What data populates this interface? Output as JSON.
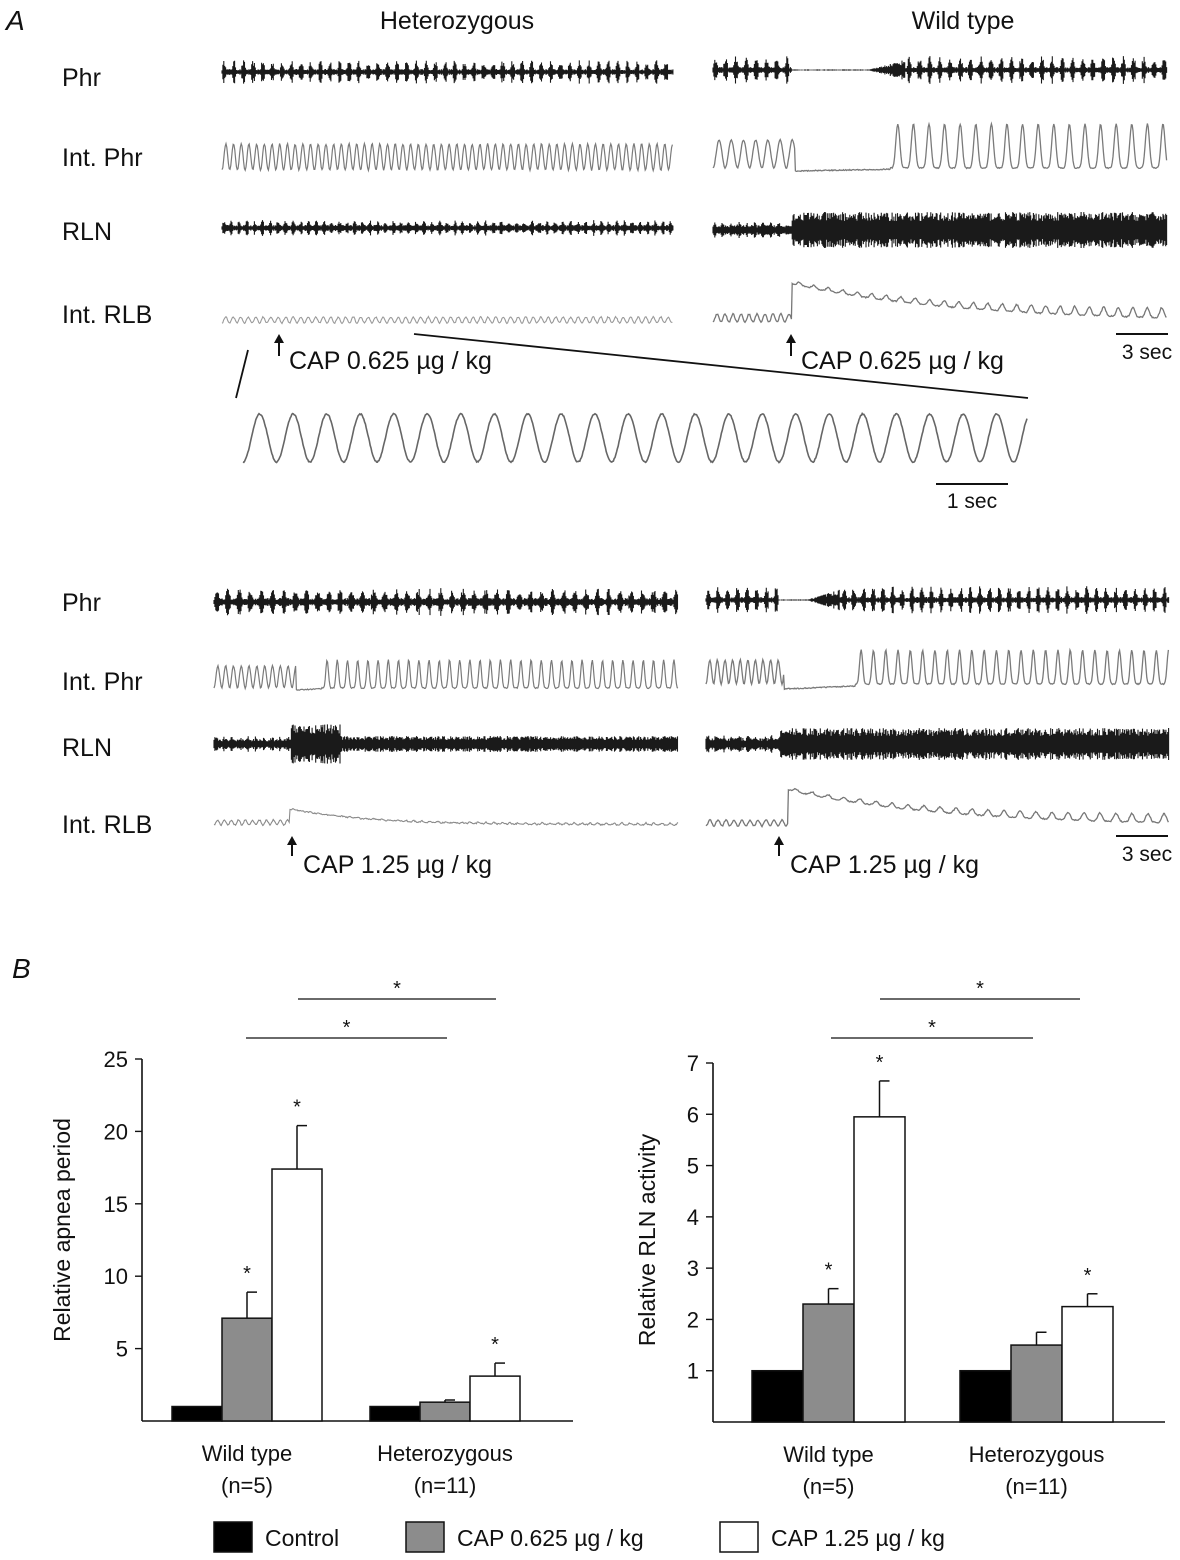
{
  "panel_a": {
    "letter": "A",
    "col_heads": [
      "Heterozygous",
      "Wild type"
    ],
    "trace_labels": [
      "Phr",
      "Int. Phr",
      "RLN",
      "Int. RLB"
    ],
    "top_stim": [
      "CAP 0.625 µg / kg",
      "CAP 0.625 µg / kg"
    ],
    "bottom_stim": [
      "CAP 1.25 µg / kg",
      "CAP 1.25 µg / kg"
    ],
    "scale_top": "3 sec",
    "scale_zoom": "1 sec",
    "scale_bottom": "3 sec"
  },
  "panel_b": {
    "letter": "B",
    "sig_marker": "*"
  },
  "colors": {
    "control": "#000000",
    "cap_low": "#8c8c8c",
    "cap_high": "#ffffff",
    "trace": "#1a1a1a",
    "integrated": "#777777"
  },
  "chart_data": [
    {
      "type": "bar",
      "title": "",
      "xlabel": "",
      "ylabel": "Relative apnea period",
      "categories": [
        "Wild type",
        "Heterozygous"
      ],
      "category_n": [
        "(n=5)",
        "(n=11)"
      ],
      "yticks": [
        5,
        10,
        15,
        20,
        25
      ],
      "ylim": [
        0,
        25
      ],
      "series": [
        {
          "name": "Control",
          "values": [
            1,
            1
          ],
          "errors": [
            0,
            0
          ],
          "sig": [
            false,
            false
          ]
        },
        {
          "name": "CAP 0.625 µg / kg",
          "values": [
            7.1,
            1.3
          ],
          "errors": [
            1.8,
            0.15
          ],
          "sig": [
            true,
            false
          ]
        },
        {
          "name": "CAP 1.25 µg / kg",
          "values": [
            17.4,
            3.1
          ],
          "errors": [
            3.0,
            0.9
          ],
          "sig": [
            true,
            true
          ]
        }
      ],
      "comparisons": [
        {
          "from_category": 0,
          "from_series": 1,
          "to_category": 1,
          "to_series": 1,
          "label": "*"
        },
        {
          "from_category": 0,
          "from_series": 2,
          "to_category": 1,
          "to_series": 2,
          "label": "*"
        }
      ],
      "legend": "bottom",
      "grid": false
    },
    {
      "type": "bar",
      "title": "",
      "xlabel": "",
      "ylabel": "Relative RLN activity",
      "categories": [
        "Wild type",
        "Heterozygous"
      ],
      "category_n": [
        "(n=5)",
        "(n=11)"
      ],
      "yticks": [
        1,
        2,
        3,
        4,
        5,
        6,
        7
      ],
      "ylim": [
        0,
        7
      ],
      "series": [
        {
          "name": "Control",
          "values": [
            1,
            1
          ],
          "errors": [
            0,
            0
          ],
          "sig": [
            false,
            false
          ]
        },
        {
          "name": "CAP 0.625 µg / kg",
          "values": [
            2.3,
            1.5
          ],
          "errors": [
            0.3,
            0.25
          ],
          "sig": [
            true,
            false
          ]
        },
        {
          "name": "CAP 1.25 µg / kg",
          "values": [
            5.95,
            2.25
          ],
          "errors": [
            0.7,
            0.25
          ],
          "sig": [
            true,
            true
          ]
        }
      ],
      "comparisons": [
        {
          "from_category": 0,
          "from_series": 1,
          "to_category": 1,
          "to_series": 1,
          "label": "*"
        },
        {
          "from_category": 0,
          "from_series": 2,
          "to_category": 1,
          "to_series": 2,
          "label": "*"
        }
      ],
      "legend": "bottom",
      "grid": false
    }
  ],
  "legend": {
    "items": [
      {
        "label": "Control",
        "color": "#000000"
      },
      {
        "label": "CAP 0.625 µg / kg",
        "color": "#8c8c8c"
      },
      {
        "label": "CAP 1.25 µg / kg",
        "color": "#ffffff"
      }
    ]
  }
}
